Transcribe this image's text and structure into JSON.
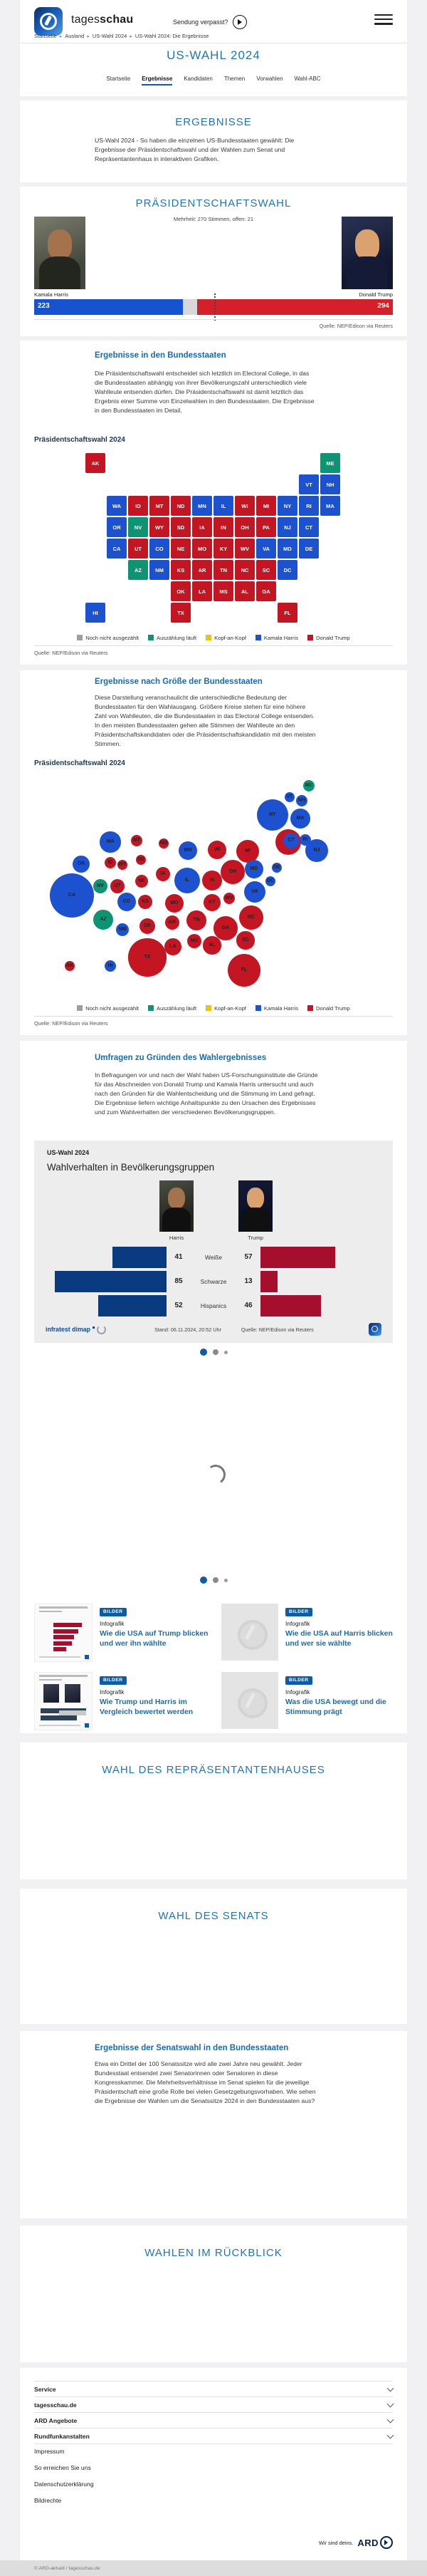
{
  "colors": {
    "accent_blue": "#1e76b4",
    "brand_blue": "#0d5ca8",
    "harris": "#1c51cf",
    "trump": "#c31622",
    "counting": "#0e9373",
    "tossup": "#e8c413",
    "open": "#9e9e9e",
    "harris_dark": "#0a3a80",
    "trump_dark": "#a50e2d",
    "bar_blue": "#1553d0",
    "bar_red": "#d5202a"
  },
  "header": {
    "brand_light": "tages",
    "brand_bold": "schau",
    "missed_label": "Sendung verpasst?"
  },
  "breadcrumb": [
    "Startseite",
    "Ausland",
    "US-Wahl 2024",
    "US-Wahl 2024: Die Ergebnisse"
  ],
  "hero": {
    "title": "US-WAHL 2024"
  },
  "nav_tabs": [
    {
      "label": "Startseite",
      "active": false
    },
    {
      "label": "Ergebnisse",
      "active": true
    },
    {
      "label": "Kandidaten",
      "active": false
    },
    {
      "label": "Themen",
      "active": false
    },
    {
      "label": "Vorwahlen",
      "active": false
    },
    {
      "label": "Wahl-ABC",
      "active": false
    }
  ],
  "sections": {
    "ergebnisse": {
      "title": "ERGEBNISSE",
      "intro": "US-Wahl 2024 - So haben die einzelnen US-Bundesstaaten gewählt: Die Ergebnisse der Präsidentschaftswahl und der Wahlen zum Senat und Repräsentantenhaus in interaktiven Grafiken."
    },
    "praesidentschaftswahl": {
      "title": "PRÄSIDENTSCHAFTSWAHL",
      "majority_note": "Mehrheit: 270 Stimmen, offen: 21",
      "harris_label": "Kamala Harris",
      "trump_label": "Donald Trump",
      "source": "Quelle: NEP/Edison via Reuters"
    },
    "staaten": {
      "title": "Ergebnisse in den Bundesstaaten",
      "body": "Die Präsidentschaftswahl entscheidet sich letztlich im Electoral College, in das die Bundesstaaten abhängig von ihrer Bevölkerungszahl unterschiedlich viele Wahlleute entsenden dürfen. Die Präsidentschaftswahl ist damit letztlich das Ergebnis einer Summe von Einzelwahlen in den Bundesstaaten. Die Ergebnisse in den Bundesstaaten im Detail.",
      "chart_caption": "Präsidentschaftswahl 2024",
      "source": "Quelle: NEP/Edison via Reuters"
    },
    "groesse": {
      "title": "Ergebnisse nach Größe der Bundesstaaten",
      "body": "Diese Darstellung veranschaulicht die unterschiedliche Bedeutung der Bundesstaaten für den Wahlausgang. Größere Kreise stehen für eine höhere Zahl von Wahlleuten, die die Bundesstaaten in das Electoral College entsenden. In den meisten Bundesstaaten gehen alle Stimmen der Wahlleute an den Präsidentschaftskandidaten oder die Präsidentschaftskandidatin mit den meisten Stimmen.",
      "chart_caption": "Präsidentschaftswahl 2024",
      "source": "Quelle: NEP/Edison via Reuters"
    },
    "umfragen": {
      "title": "Umfragen zu Gründen des Wahlergebnisses",
      "body": "In Befragungen vor und nach der Wahl haben US-Forschungsinstitute die Gründe für das Abschneiden von Donald Trump und Kamala Harris untersucht und auch nach den Gründen für die Wahlentscheidung und die Stimmung im Land gefragt. Die Ergebnisse liefern wichtige Anhaltspunkte zu den Ursachen des Ergebnisses und zum Wahlverhalten der verschiedenen Bevölkerungsgruppen."
    },
    "repraesentantenhaus": {
      "title": "WAHL DES REPRÄSENTANTENHAUSES"
    },
    "senat": {
      "title": "WAHL DES SENATS"
    },
    "senatswahl": {
      "title": "Ergebnisse der Senatswahl in den Bundesstaaten",
      "body": "Etwa ein Drittel der 100 Senatssitze wird alle zwei Jahre neu gewählt. Jeder Bundesstaat entsendet zwei Senatorinnen oder Senatoren in diese Kongresskammer. Die Mehrheitsverhältnisse im Senat spielen für die jeweilige Präsidentschaft eine große Rolle bei vielen Gesetzgebungsvorhaben. Wie sehen die Ergebnisse der Wahlen um die Senatssitze 2024 in den Bundesstaaten aus?"
    },
    "rueckblick": {
      "title": "WAHLEN IM RÜCKBLICK"
    }
  },
  "legend": {
    "items": [
      {
        "label": "Noch nicht ausgezählt",
        "color": "#9e9e9e"
      },
      {
        "label": "Auszählung läuft",
        "color": "#0e9373"
      },
      {
        "label": "Kopf-an-Kopf",
        "color": "#e8c413"
      },
      {
        "label": "Kamala Harris",
        "color": "#1c51cf"
      },
      {
        "label": "Donald Trump",
        "color": "#c31622"
      }
    ]
  },
  "demographics_widget": {
    "kicker": "US-Wahl 2024",
    "title": "Wahlverhalten in Bevölkerungsgruppen",
    "left_label": "Harris",
    "right_label": "Trump",
    "brand": "infratest dimap",
    "stand": "Stand:  06.11.2024, 20:52 Uhr",
    "source": "Quelle: NEP/Edison via Reuters"
  },
  "carousel": {
    "dots": 3,
    "active": 0
  },
  "teasers": [
    {
      "badge": "BILDER",
      "kicker": "Infografik",
      "title": "Wie die USA auf Trump blicken und wer ihn wählte",
      "thumb": "chart-bars"
    },
    {
      "badge": "BILDER",
      "kicker": "Infografik",
      "title": "Wie die USA auf Harris blicken und wer sie wählte",
      "thumb": "globe"
    },
    {
      "badge": "BILDER",
      "kicker": "Infografik",
      "title": "Wie Trump und Harris im Vergleich bewertet werden",
      "thumb": "chart-compare"
    },
    {
      "badge": "BILDER",
      "kicker": "Infografik",
      "title": "Was die USA bewegt und die Stimmung prägt",
      "thumb": "globe"
    }
  ],
  "footer": {
    "accordions": [
      "Service",
      "tagesschau.de",
      "ARD Angebote",
      "Rundfunkanstalten"
    ],
    "links": [
      "Impressum",
      "So erreichen Sie uns",
      "Datenschutzerklärung",
      "Bildrechte"
    ],
    "ard_tagline": "Wir sind deins.",
    "ard_logo": "ARD",
    "copyright": "© ARD-aktuell / tagesschau.de"
  },
  "chart_data": [
    {
      "type": "bar",
      "title": "Electoral College Ergebnis",
      "annotation": "Mehrheit: 270 Stimmen, offen: 21",
      "series": [
        {
          "name": "Kamala Harris",
          "value": 223
        },
        {
          "name": "offen",
          "value": 21
        },
        {
          "name": "Donald Trump",
          "value": 294
        }
      ],
      "majority": 270,
      "total": 538
    },
    {
      "type": "map",
      "title": "Präsidentschaftswahl 2024",
      "legend_position": "bottom",
      "states": [
        {
          "abbr": "WA",
          "votes": 12,
          "result": "harris"
        },
        {
          "abbr": "OR",
          "votes": 8,
          "result": "harris"
        },
        {
          "abbr": "CA",
          "votes": 54,
          "result": "harris"
        },
        {
          "abbr": "NV",
          "votes": 6,
          "result": "counting"
        },
        {
          "abbr": "AZ",
          "votes": 11,
          "result": "counting"
        },
        {
          "abbr": "ID",
          "votes": 4,
          "result": "trump"
        },
        {
          "abbr": "MT",
          "votes": 4,
          "result": "trump"
        },
        {
          "abbr": "WY",
          "votes": 3,
          "result": "trump"
        },
        {
          "abbr": "UT",
          "votes": 6,
          "result": "trump"
        },
        {
          "abbr": "CO",
          "votes": 10,
          "result": "harris"
        },
        {
          "abbr": "NM",
          "votes": 5,
          "result": "harris"
        },
        {
          "abbr": "ND",
          "votes": 3,
          "result": "trump"
        },
        {
          "abbr": "SD",
          "votes": 3,
          "result": "trump"
        },
        {
          "abbr": "NE",
          "votes": 5,
          "result": "trump"
        },
        {
          "abbr": "KS",
          "votes": 6,
          "result": "trump"
        },
        {
          "abbr": "OK",
          "votes": 7,
          "result": "trump"
        },
        {
          "abbr": "TX",
          "votes": 40,
          "result": "trump"
        },
        {
          "abbr": "MN",
          "votes": 10,
          "result": "harris"
        },
        {
          "abbr": "IA",
          "votes": 6,
          "result": "trump"
        },
        {
          "abbr": "MO",
          "votes": 10,
          "result": "trump"
        },
        {
          "abbr": "AR",
          "votes": 6,
          "result": "trump"
        },
        {
          "abbr": "LA",
          "votes": 8,
          "result": "trump"
        },
        {
          "abbr": "WI",
          "votes": 10,
          "result": "trump"
        },
        {
          "abbr": "IL",
          "votes": 19,
          "result": "harris"
        },
        {
          "abbr": "MS",
          "votes": 6,
          "result": "trump"
        },
        {
          "abbr": "MI",
          "votes": 15,
          "result": "trump"
        },
        {
          "abbr": "IN",
          "votes": 11,
          "result": "trump"
        },
        {
          "abbr": "OH",
          "votes": 17,
          "result": "trump"
        },
        {
          "abbr": "KY",
          "votes": 8,
          "result": "trump"
        },
        {
          "abbr": "TN",
          "votes": 11,
          "result": "trump"
        },
        {
          "abbr": "AL",
          "votes": 9,
          "result": "trump"
        },
        {
          "abbr": "GA",
          "votes": 16,
          "result": "trump"
        },
        {
          "abbr": "FL",
          "votes": 30,
          "result": "trump"
        },
        {
          "abbr": "SC",
          "votes": 9,
          "result": "trump"
        },
        {
          "abbr": "NC",
          "votes": 16,
          "result": "trump"
        },
        {
          "abbr": "VA",
          "votes": 13,
          "result": "harris"
        },
        {
          "abbr": "WV",
          "votes": 4,
          "result": "trump"
        },
        {
          "abbr": "PA",
          "votes": 19,
          "result": "trump"
        },
        {
          "abbr": "NY",
          "votes": 28,
          "result": "harris"
        },
        {
          "abbr": "ME",
          "votes": 4,
          "result": "counting"
        },
        {
          "abbr": "VT",
          "votes": 3,
          "result": "harris"
        },
        {
          "abbr": "NH",
          "votes": 4,
          "result": "harris"
        },
        {
          "abbr": "MA",
          "votes": 11,
          "result": "harris"
        },
        {
          "abbr": "CT",
          "votes": 7,
          "result": "harris"
        },
        {
          "abbr": "RI",
          "votes": 4,
          "result": "harris"
        },
        {
          "abbr": "NJ",
          "votes": 14,
          "result": "harris"
        },
        {
          "abbr": "DE",
          "votes": 3,
          "result": "harris"
        },
        {
          "abbr": "MD",
          "votes": 10,
          "result": "harris"
        },
        {
          "abbr": "DC",
          "votes": 3,
          "result": "harris"
        },
        {
          "abbr": "AK",
          "votes": 3,
          "result": "trump"
        },
        {
          "abbr": "HI",
          "votes": 4,
          "result": "harris"
        }
      ]
    },
    {
      "type": "bubble",
      "title": "Präsidentschaftswahl 2024",
      "note": "Kreisfläche proportional zur Zahl der Wahlleute"
    },
    {
      "type": "bar",
      "title": "Wahlverhalten in Bevölkerungsgruppen",
      "categories": [
        "Weiße",
        "Schwarze",
        "Hispanics"
      ],
      "series": [
        {
          "name": "Harris",
          "values": [
            41,
            85,
            52
          ]
        },
        {
          "name": "Trump",
          "values": [
            57,
            13,
            46
          ]
        }
      ],
      "stand": "Stand: 06.11.2024, 20:52 Uhr",
      "source": "Quelle: NEP/Edison via Reuters"
    }
  ]
}
